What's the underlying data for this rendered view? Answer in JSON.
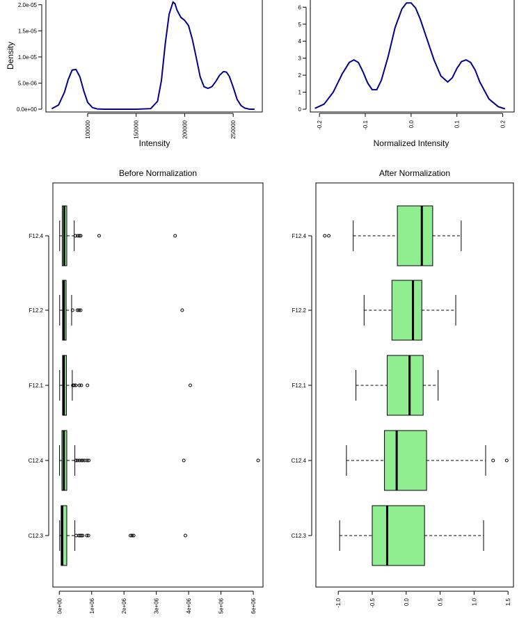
{
  "chart_data": [
    {
      "type": "line",
      "title": "",
      "xlabel": "Intensity",
      "ylabel": "Density",
      "xlim": [
        57000,
        280000
      ],
      "ylim": [
        0,
        2.05e-05
      ],
      "xticks": [
        100000,
        150000,
        200000,
        250000
      ],
      "xtick_labels": [
        "100000",
        "150000",
        "200000",
        "250000"
      ],
      "yticks": [
        0,
        5e-06,
        1e-05,
        1.5e-05,
        2e-05
      ],
      "ytick_labels": [
        "0.0e+00",
        "5.0e-06",
        "1.0e-05",
        "1.5e-05",
        "2.0e-05"
      ],
      "line_color": "#00008B",
      "x": [
        63000,
        70000,
        76000,
        80000,
        84000,
        88000,
        92000,
        96000,
        100000,
        105000,
        110000,
        118000,
        130000,
        150000,
        165000,
        172000,
        176000,
        180000,
        184000,
        188000,
        190000,
        192000,
        196000,
        200000,
        204000,
        208000,
        212000,
        216000,
        220000,
        224000,
        228000,
        232000,
        236000,
        240000,
        243000,
        246000,
        250000,
        254000,
        258000,
        262000,
        267000,
        272000
      ],
      "y": [
        1e-07,
        8e-07,
        3.2e-06,
        5.7e-06,
        7.5e-06,
        7.6e-06,
        6.2e-06,
        3.5e-06,
        1.3e-06,
        3e-07,
        5e-08,
        0.0,
        0.0,
        0.0,
        1e-07,
        1.5e-06,
        5.5e-06,
        1.25e-05,
        1.82e-05,
        2.05e-05,
        2.02e-05,
        1.9e-05,
        1.76e-05,
        1.7e-05,
        1.6e-05,
        1.33e-05,
        9.8e-06,
        6.2e-06,
        4.3e-06,
        4e-06,
        4.3e-06,
        5.3e-06,
        6.5e-06,
        7.2e-06,
        7.1e-06,
        6.3e-06,
        4.2e-06,
        1.9e-06,
        7e-07,
        2e-07,
        0.0,
        0.0
      ]
    },
    {
      "type": "line",
      "title": "",
      "xlabel": "Normalized Intensity",
      "ylabel": "",
      "xlim": [
        -0.22,
        0.225
      ],
      "ylim": [
        0,
        6.3
      ],
      "xticks": [
        -0.2,
        -0.1,
        0.0,
        0.1,
        0.2
      ],
      "xtick_labels": [
        "-0.2",
        "-0.1",
        "0.0",
        "0.1",
        "0.2"
      ],
      "yticks": [
        0,
        1,
        2,
        3,
        4,
        5,
        6
      ],
      "ytick_labels": [
        "0",
        "1",
        "2",
        "3",
        "4",
        "5",
        "6"
      ],
      "line_color": "#00008B",
      "x": [
        -0.21,
        -0.19,
        -0.17,
        -0.15,
        -0.135,
        -0.125,
        -0.115,
        -0.105,
        -0.095,
        -0.085,
        -0.075,
        -0.065,
        -0.05,
        -0.035,
        -0.02,
        -0.01,
        0.0,
        0.01,
        0.02,
        0.035,
        0.05,
        0.065,
        0.08,
        0.09,
        0.1,
        0.11,
        0.12,
        0.13,
        0.14,
        0.15,
        0.17,
        0.19,
        0.205
      ],
      "y": [
        0.05,
        0.3,
        1.0,
        2.1,
        2.75,
        2.9,
        2.75,
        2.2,
        1.55,
        1.15,
        1.15,
        1.7,
        3.1,
        4.8,
        5.9,
        6.25,
        6.25,
        5.95,
        5.3,
        4.1,
        2.9,
        1.95,
        1.6,
        1.85,
        2.4,
        2.8,
        2.9,
        2.75,
        2.3,
        1.6,
        0.6,
        0.15,
        0.02
      ]
    },
    {
      "type": "boxplot",
      "title": "Before Normalization",
      "orientation": "horizontal",
      "xlim": [
        -200000,
        6300000
      ],
      "xticks": [
        0,
        1000000,
        2000000,
        3000000,
        4000000,
        5000000,
        6000000
      ],
      "xtick_labels": [
        "0e+00",
        "1e+06",
        "2e+06",
        "3e+06",
        "4e+06",
        "5e+06",
        "6e+06"
      ],
      "box_color": "#90EE90",
      "categories": [
        "C12.3",
        "C12.4",
        "F12.1",
        "F12.2",
        "F12.4"
      ],
      "boxes": [
        {
          "name": "C12.3",
          "whisker_low": 10000,
          "q1": 55000,
          "median": 90000,
          "q3": 230000,
          "whisker_high": 480000,
          "outliers": [
            520000,
            600000,
            640000,
            680000,
            720000,
            850000,
            900000,
            2200000,
            2250000,
            2300000,
            3900000
          ]
        },
        {
          "name": "C12.4",
          "whisker_low": 5000,
          "q1": 80000,
          "median": 140000,
          "q3": 230000,
          "whisker_high": 480000,
          "outliers": [
            510000,
            560000,
            620000,
            680000,
            730000,
            790000,
            860000,
            910000,
            3850000,
            6150000
          ]
        },
        {
          "name": "F12.1",
          "whisker_low": 10000,
          "q1": 100000,
          "median": 140000,
          "q3": 220000,
          "whisker_high": 400000,
          "outliers": [
            420000,
            460000,
            510000,
            620000,
            680000,
            870000,
            4050000
          ]
        },
        {
          "name": "F12.2",
          "whisker_low": 10000,
          "q1": 100000,
          "median": 140000,
          "q3": 210000,
          "whisker_high": 380000,
          "outliers": [
            410000,
            560000,
            610000,
            660000,
            3800000
          ]
        },
        {
          "name": "F12.4",
          "whisker_low": 10000,
          "q1": 90000,
          "median": 150000,
          "q3": 230000,
          "whisker_high": 460000,
          "outliers": [
            500000,
            570000,
            620000,
            660000,
            1230000,
            3580000
          ]
        }
      ]
    },
    {
      "type": "boxplot",
      "title": "After Normalization",
      "orientation": "horizontal",
      "xlim": [
        -1.33,
        1.58
      ],
      "xticks": [
        -1.0,
        -0.5,
        0.0,
        0.5,
        1.0,
        1.5
      ],
      "xtick_labels": [
        "-1.0",
        "-0.5",
        "0.0",
        "0.5",
        "1.0",
        "1.5"
      ],
      "box_color": "#90EE90",
      "categories": [
        "C12.3",
        "C12.4",
        "F12.1",
        "F12.2",
        "F12.4"
      ],
      "boxes": [
        {
          "name": "C12.3",
          "whisker_low": -0.98,
          "q1": -0.5,
          "median": -0.28,
          "q3": 0.27,
          "whisker_high": 1.14,
          "outliers": []
        },
        {
          "name": "C12.4",
          "whisker_low": -0.88,
          "q1": -0.32,
          "median": -0.14,
          "q3": 0.3,
          "whisker_high": 1.17,
          "outliers": [
            1.28,
            1.48
          ]
        },
        {
          "name": "F12.1",
          "whisker_low": -0.74,
          "q1": -0.28,
          "median": 0.05,
          "q3": 0.25,
          "whisker_high": 0.47,
          "outliers": []
        },
        {
          "name": "F12.2",
          "whisker_low": -0.62,
          "q1": -0.21,
          "median": 0.1,
          "q3": 0.23,
          "whisker_high": 0.73,
          "outliers": []
        },
        {
          "name": "F12.4",
          "whisker_low": -0.78,
          "q1": -0.13,
          "median": 0.23,
          "q3": 0.39,
          "whisker_high": 0.81,
          "outliers": [
            -1.2,
            -1.14
          ]
        }
      ]
    }
  ]
}
